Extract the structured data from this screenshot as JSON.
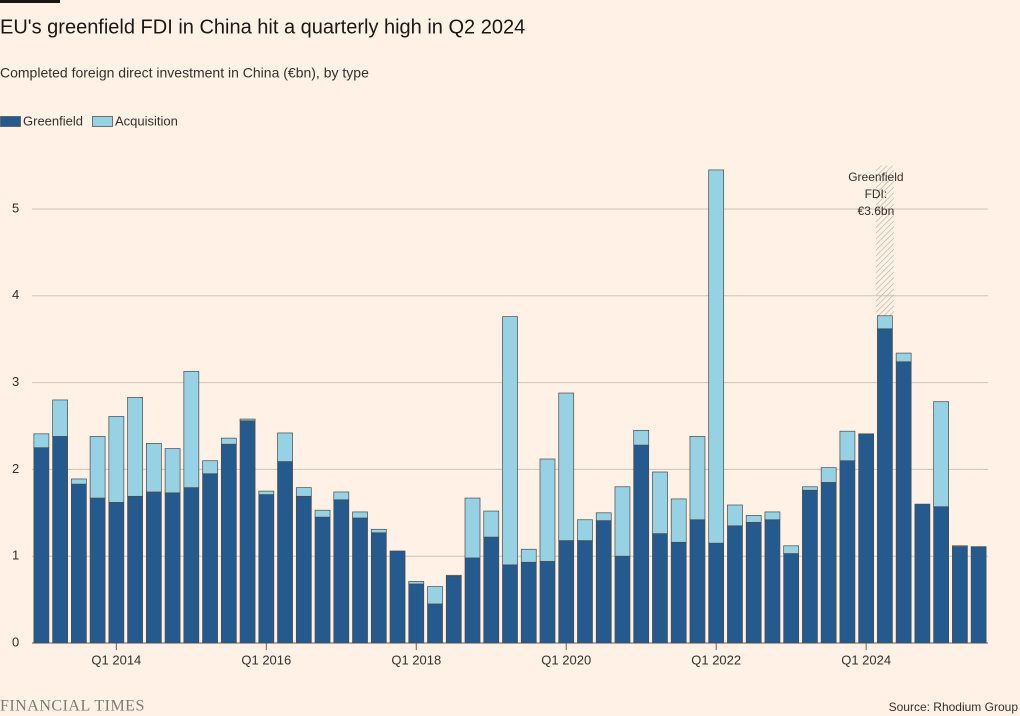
{
  "chart_data": {
    "type": "stacked_bar",
    "title": "EU's greenfield FDI in China hit a quarterly high in Q2 2024",
    "subtitle": "Completed foreign direct investment in China (€bn), by type",
    "source": "Source: Rhodium Group",
    "brand": "FINANCIAL TIMES",
    "annotation": [
      "Greenfield",
      "FDI:",
      "€3.6bn"
    ],
    "annotation_index": 45,
    "categories": [
      null,
      null,
      null,
      null,
      "Q1 2014",
      null,
      null,
      null,
      null,
      null,
      null,
      null,
      "Q1 2016",
      null,
      null,
      null,
      null,
      null,
      null,
      null,
      "Q1 2018",
      null,
      null,
      null,
      null,
      null,
      null,
      null,
      "Q1 2020",
      null,
      null,
      null,
      null,
      null,
      null,
      null,
      "Q1 2022",
      null,
      null,
      null,
      null,
      null,
      null,
      null,
      "Q1 2024",
      null,
      null,
      null,
      null,
      null,
      null
    ],
    "series": [
      {
        "name": "Greenfield",
        "color": "#245a8e",
        "values": [
          2.25,
          2.38,
          1.83,
          1.67,
          1.62,
          1.69,
          1.74,
          1.73,
          1.79,
          1.95,
          2.29,
          2.56,
          1.71,
          2.09,
          1.69,
          1.45,
          1.65,
          1.44,
          1.27,
          1.06,
          0.68,
          0.45,
          0.77,
          0.98,
          1.22,
          0.9,
          0.93,
          0.94,
          1.18,
          1.18,
          1.41,
          1.0,
          2.28,
          1.26,
          1.16,
          1.42,
          1.15,
          1.35,
          1.39,
          1.42,
          1.03,
          1.76,
          1.85,
          2.1,
          2.41,
          3.62,
          3.24,
          1.6,
          1.57,
          1.11,
          1.11
        ]
      },
      {
        "name": "Acquisition",
        "color": "#96d1e4",
        "values": [
          0.16,
          0.42,
          0.06,
          0.71,
          0.99,
          1.14,
          0.56,
          0.51,
          1.34,
          0.15,
          0.07,
          0.02,
          0.04,
          0.33,
          0.1,
          0.08,
          0.09,
          0.07,
          0.04,
          0,
          0.03,
          0.2,
          0.01,
          0.69,
          0.3,
          2.86,
          0.15,
          1.18,
          1.7,
          0.24,
          0.09,
          0.8,
          0.17,
          0.71,
          0.5,
          0.96,
          4.3,
          0.24,
          0.08,
          0.09,
          0.09,
          0.04,
          0.17,
          0.34,
          0,
          0.15,
          0.1,
          0,
          1.21,
          0.01,
          0
        ]
      }
    ],
    "ylim": [
      0,
      5.5
    ],
    "yticks": [
      0,
      1,
      2,
      3,
      4,
      5
    ],
    "grid": true
  }
}
